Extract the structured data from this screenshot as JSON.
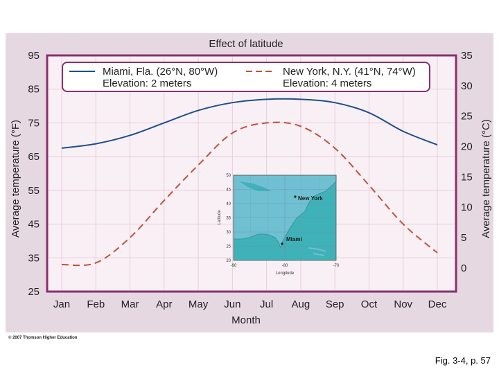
{
  "chart_data": {
    "type": "line",
    "title": "Effect of latitude",
    "xlabel": "Month",
    "ylabel_left": "Average temperature (°F)",
    "ylabel_right": "Average temperature (°C)",
    "categories": [
      "Jan",
      "Feb",
      "Mar",
      "Apr",
      "May",
      "Jun",
      "Jul",
      "Aug",
      "Sep",
      "Oct",
      "Nov",
      "Dec"
    ],
    "ylim": [
      25,
      95
    ],
    "yticks_left": [
      95,
      85,
      75,
      65,
      55,
      45,
      35,
      25
    ],
    "yticks_right": [
      35,
      30,
      25,
      20,
      15,
      10,
      5,
      0
    ],
    "ylim_right": [
      -3.9,
      35
    ],
    "grid": true,
    "legend_position": "top",
    "series": [
      {
        "name": "Miami, Fla. (26°N, 80°W)",
        "subtitle": "Elevation: 2 meters",
        "style": "solid",
        "color": "#1f4e8c",
        "values": [
          67.5,
          68.8,
          71.3,
          75.0,
          78.7,
          81.0,
          82.0,
          82.0,
          81.0,
          78.0,
          72.5,
          68.5
        ]
      },
      {
        "name": "New York, N.Y. (41°N, 74°W)",
        "subtitle": "Elevation: 4 meters",
        "style": "dashed",
        "color": "#c0503a",
        "values": [
          33.0,
          33.5,
          41.0,
          52.0,
          62.5,
          72.0,
          75.0,
          74.0,
          67.5,
          56.5,
          45.0,
          36.5
        ]
      }
    ]
  },
  "inset_map": {
    "lat_ticks": [
      "50",
      "45",
      "40",
      "35",
      "30",
      "25",
      "20"
    ],
    "lon_ticks": [
      "-90",
      "-80",
      "-70"
    ],
    "lat_label": "Latitude",
    "lon_label": "Longitude",
    "labels": [
      "New York",
      "Miami"
    ]
  },
  "copyright": "© 2007 Thomson Higher Education",
  "caption": "Fig. 3-4, p. 57",
  "colors": {
    "panel_bg": "#e6d8e1",
    "plot_bg": "#f8f0f4",
    "frame": "#8a2f6e",
    "grid": "#e8cdd9",
    "ocean": "#3fb2b8",
    "land": "#6fc0d0"
  }
}
